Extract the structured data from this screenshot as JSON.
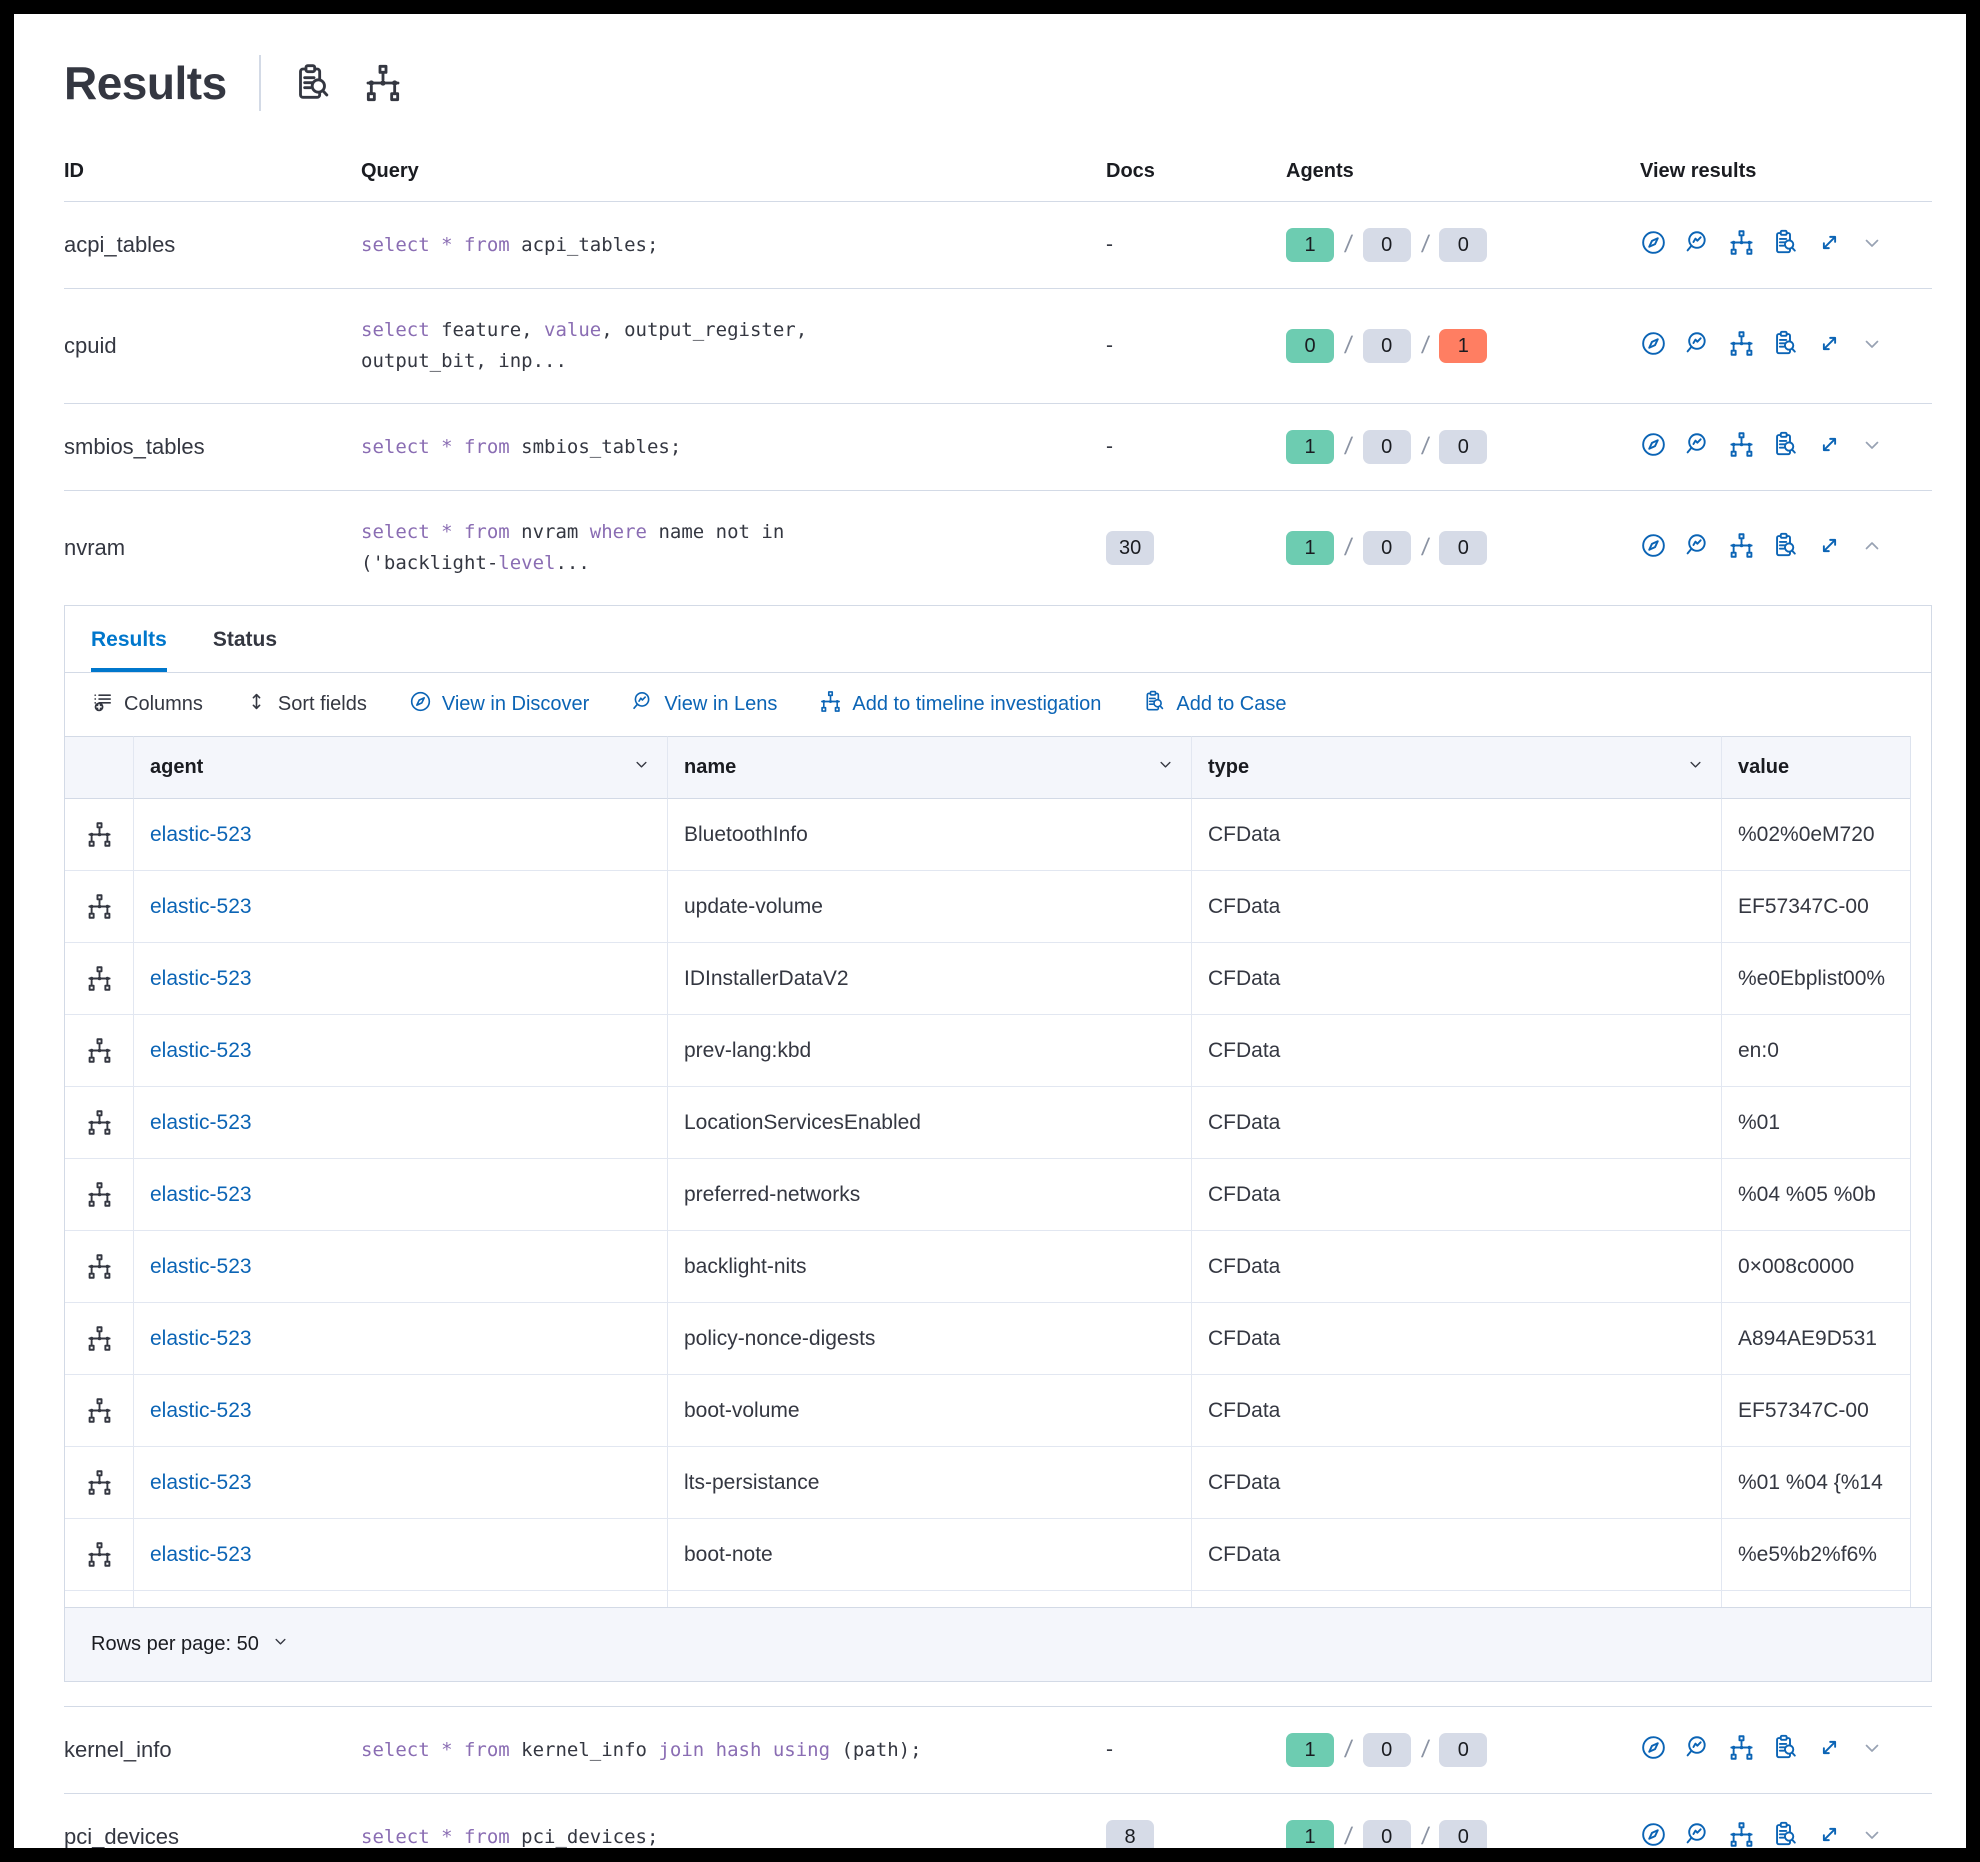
{
  "header": {
    "title": "Results"
  },
  "table": {
    "columns": [
      "ID",
      "Query",
      "Docs",
      "Agents",
      "View results"
    ],
    "rows": [
      {
        "id": "acpi_tables",
        "docs": "-",
        "docs_badge": false,
        "query_lines": [
          [
            {
              "t": "select * from",
              "k": true
            },
            {
              "t": " acpi_tables;",
              "k": false
            }
          ]
        ],
        "agents": {
          "values": [
            1,
            0,
            0
          ],
          "variants": [
            "green",
            "neutral",
            "neutral"
          ]
        },
        "expanded": false
      },
      {
        "id": "cpuid",
        "docs": "-",
        "docs_badge": false,
        "query_lines": [
          [
            {
              "t": "select",
              "k": true
            },
            {
              "t": " feature, ",
              "k": false
            },
            {
              "t": "value",
              "k": true
            },
            {
              "t": ", output_register,",
              "k": false
            }
          ],
          [
            {
              "t": "output_bit, inp...",
              "k": false
            }
          ]
        ],
        "agents": {
          "values": [
            0,
            0,
            1
          ],
          "variants": [
            "green",
            "neutral",
            "danger"
          ]
        },
        "expanded": false
      },
      {
        "id": "smbios_tables",
        "docs": "-",
        "docs_badge": false,
        "query_lines": [
          [
            {
              "t": "select * from",
              "k": true
            },
            {
              "t": " smbios_tables;",
              "k": false
            }
          ]
        ],
        "agents": {
          "values": [
            1,
            0,
            0
          ],
          "variants": [
            "green",
            "neutral",
            "neutral"
          ]
        },
        "expanded": false
      },
      {
        "id": "nvram",
        "docs": "30",
        "docs_badge": true,
        "query_lines": [
          [
            {
              "t": "select * from",
              "k": true
            },
            {
              "t": " nvram ",
              "k": false
            },
            {
              "t": "where",
              "k": true
            },
            {
              "t": " name not in",
              "k": false
            }
          ],
          [
            {
              "t": "('backlight-",
              "k": false
            },
            {
              "t": "level",
              "k": true
            },
            {
              "t": "...",
              "k": false
            }
          ]
        ],
        "agents": {
          "values": [
            1,
            0,
            0
          ],
          "variants": [
            "green",
            "neutral",
            "neutral"
          ]
        },
        "expanded": true
      },
      {
        "id": "kernel_info",
        "docs": "-",
        "docs_badge": false,
        "query_lines": [
          [
            {
              "t": "select * from",
              "k": true
            },
            {
              "t": " kernel_info ",
              "k": false
            },
            {
              "t": "join hash using",
              "k": true
            },
            {
              "t": " (path);",
              "k": false
            }
          ]
        ],
        "agents": {
          "values": [
            1,
            0,
            0
          ],
          "variants": [
            "green",
            "neutral",
            "neutral"
          ]
        },
        "expanded": false
      },
      {
        "id": "pci_devices",
        "docs": "8",
        "docs_badge": true,
        "query_lines": [
          [
            {
              "t": "select * from",
              "k": true
            },
            {
              "t": " pci_devices;",
              "k": false
            }
          ]
        ],
        "agents": {
          "values": [
            1,
            0,
            0
          ],
          "variants": [
            "green",
            "neutral",
            "neutral"
          ]
        },
        "expanded": false
      }
    ]
  },
  "panel": {
    "tabs": [
      {
        "label": "Results"
      },
      {
        "label": "Status"
      }
    ],
    "toolbar": {
      "columns": "Columns",
      "sort_fields": "Sort fields",
      "view_in_discover": "View in Discover",
      "view_in_lens": "View in Lens",
      "add_to_timeline": "Add to timeline investigation",
      "add_to_case": "Add to Case"
    },
    "grid": {
      "columns": [
        "agent",
        "name",
        "type",
        "value"
      ],
      "rows": [
        {
          "agent": "elastic-523",
          "name": "BluetoothInfo",
          "type": "CFData",
          "value": "%02%0eM720"
        },
        {
          "agent": "elastic-523",
          "name": "update-volume",
          "type": "CFData",
          "value": "EF57347C-00"
        },
        {
          "agent": "elastic-523",
          "name": "IDInstallerDataV2",
          "type": "CFData",
          "value": "%e0Ebplist00%"
        },
        {
          "agent": "elastic-523",
          "name": "prev-lang:kbd",
          "type": "CFData",
          "value": "en:0"
        },
        {
          "agent": "elastic-523",
          "name": "LocationServicesEnabled",
          "type": "CFData",
          "value": "%01"
        },
        {
          "agent": "elastic-523",
          "name": "preferred-networks",
          "type": "CFData",
          "value": "%04 %05 %0b"
        },
        {
          "agent": "elastic-523",
          "name": "backlight-nits",
          "type": "CFData",
          "value": "0×008c0000"
        },
        {
          "agent": "elastic-523",
          "name": "policy-nonce-digests",
          "type": "CFData",
          "value": "A894AE9D531"
        },
        {
          "agent": "elastic-523",
          "name": "boot-volume",
          "type": "CFData",
          "value": "EF57347C-00"
        },
        {
          "agent": "elastic-523",
          "name": "lts-persistance",
          "type": "CFData",
          "value": "%01 %04 {%14"
        },
        {
          "agent": "elastic-523",
          "name": "boot-note",
          "type": "CFData",
          "value": "%e5%b2%f6%"
        }
      ],
      "footer": "Rows per page: 50"
    }
  }
}
